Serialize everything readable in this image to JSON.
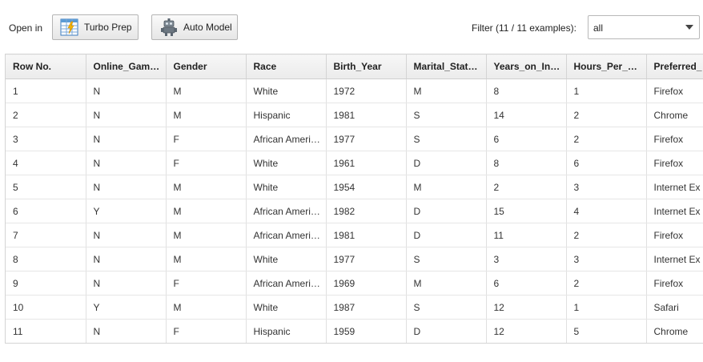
{
  "toolbar": {
    "open_in_label": "Open in",
    "turbo_prep": {
      "label": "Turbo Prep",
      "icon": "table-grid-icon"
    },
    "auto_model": {
      "label": "Auto Model",
      "icon": "robot-icon"
    },
    "filter_label": "Filter (11 / 11 examples):",
    "filter_value": "all"
  },
  "table": {
    "columns": [
      "Row No.",
      "Online_Gam…",
      "Gender",
      "Race",
      "Birth_Year",
      "Marital_Stat…",
      "Years_on_In…",
      "Hours_Per_…",
      "Preferred_"
    ],
    "rows": [
      [
        "1",
        "N",
        "M",
        "White",
        "1972",
        "M",
        "8",
        "1",
        "Firefox"
      ],
      [
        "2",
        "N",
        "M",
        "Hispanic",
        "1981",
        "S",
        "14",
        "2",
        "Chrome"
      ],
      [
        "3",
        "N",
        "F",
        "African Ameri…",
        "1977",
        "S",
        "6",
        "2",
        "Firefox"
      ],
      [
        "4",
        "N",
        "F",
        "White",
        "1961",
        "D",
        "8",
        "6",
        "Firefox"
      ],
      [
        "5",
        "N",
        "M",
        "White",
        "1954",
        "M",
        "2",
        "3",
        "Internet Ex"
      ],
      [
        "6",
        "Y",
        "M",
        "African Ameri…",
        "1982",
        "D",
        "15",
        "4",
        "Internet Ex"
      ],
      [
        "7",
        "N",
        "M",
        "African Ameri…",
        "1981",
        "D",
        "11",
        "2",
        "Firefox"
      ],
      [
        "8",
        "N",
        "M",
        "White",
        "1977",
        "S",
        "3",
        "3",
        "Internet Ex"
      ],
      [
        "9",
        "N",
        "F",
        "African Ameri…",
        "1969",
        "M",
        "6",
        "2",
        "Firefox"
      ],
      [
        "10",
        "Y",
        "M",
        "White",
        "1987",
        "S",
        "12",
        "1",
        "Safari"
      ],
      [
        "11",
        "N",
        "F",
        "Hispanic",
        "1959",
        "D",
        "12",
        "5",
        "Chrome"
      ]
    ]
  }
}
